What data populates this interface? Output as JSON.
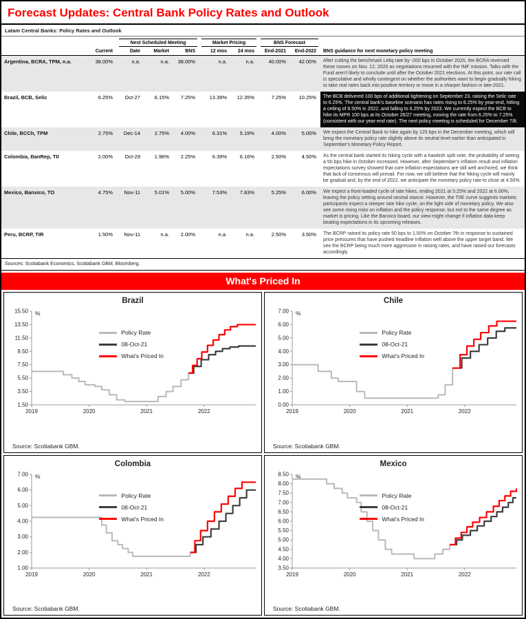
{
  "page": {
    "title": "Forecast Updates: Central Bank Policy Rates and Outlook",
    "accent_color": "#ff0000"
  },
  "table": {
    "title": "Latam Central Banks: Policy Rates and Outlook",
    "group_headers": {
      "meeting": "Next Scheduled Meeting",
      "pricing": "Market Pricing",
      "forecast": "BNS Forecast"
    },
    "columns": {
      "current": "Current",
      "date": "Date",
      "market": "Market",
      "bns": "BNS",
      "m12": "12 mos",
      "m24": "24 mos",
      "end2021": "End-2021",
      "end2022": "End-2022",
      "guidance": "BNS guidance for next monetary policy meeting"
    },
    "rows": [
      {
        "name": "Argentina, BCRA, TPM, n.a.",
        "current": "38.00%",
        "date": "n.a.",
        "market": "n.a.",
        "bns": "38.00%",
        "m12": "n.a.",
        "m24": "n.a.",
        "end2021": "40.00%",
        "end2022": "42.00%",
        "highlight": false,
        "guidance": "After cutting the benchmark Leliq rate by -200 bps in October 2020, the BCRA reversed these moves on Nov. 12, 2020 as negotiations resumed with the IMF mission. Talks with the Fund aren't likely to conclude until after the October 2021 elections. At this point, our rate call is speculative and wholly contingent on whether the authorities want to begin gradually hiking to take real rates back into positive territory or move in a sharper fashion in late-2021."
      },
      {
        "name": "Brazil, BCB, Selic",
        "current": "6.25%",
        "date": "Oct-27",
        "market": "6.15%",
        "bns": "7.25%",
        "m12": "13.39%",
        "m24": "12.35%",
        "end2021": "7.25%",
        "end2022": "10.25%",
        "highlight": true,
        "guidance": "The BCB delivered 100 bps of additional tightening on September 23, raising the Selic rate to 6.25%. The central bank's baseline scenario has rates rising to 8.25% by year-end, hitting a ceiling of 8.50% in 2022, and falling to 6.25% by 2023. We currently expect the BCB to hike its MPR 100 bps at its October 26/27 meeting, moving the rate from 6.25% to 7.25% (consistent with our year-end rate). The next policy meeting is scheduled for December 7/8."
      },
      {
        "name": "Chile, BCCh, TPM",
        "current": "2.75%",
        "date": "Dec-14",
        "market": "2.75%",
        "bns": "4.00%",
        "m12": "6.31%",
        "m24": "5.19%",
        "end2021": "4.00%",
        "end2022": "5.00%",
        "highlight": false,
        "guidance": "We expect the Central Bank to hike again by 125 bps in the December meeting, which will bring the monetary policy rate slightly above its neutral level earlier than anticipated in September's Monetary Policy Report."
      },
      {
        "name": "Colombia, BanRep, TII",
        "current": "2.00%",
        "date": "Oct-29",
        "market": "1.96%",
        "bns": "2.25%",
        "m12": "6.39%",
        "m24": "6.16%",
        "end2021": "2.50%",
        "end2022": "4.50%",
        "highlight": false,
        "guidance": "As the central bank started its hiking cycle with a hawkish split vote, the probability of seeing a 50 bps hike in October increased. However, after September's inflation result and inflation expectations survey showed that core inflation expectations are still well anchored, we think that lack of consensus will prevail. For now, we still believe that the hiking cycle will mainly be gradual and, by the end of 2022, we anticipate the monetary policy rate to close at 4.50%."
      },
      {
        "name": "Mexico, Banxico, TO",
        "current": "4.75%",
        "date": "Nov-11",
        "market": "5.01%",
        "bns": "5.00%",
        "m12": "7.53%",
        "m24": "7.83%",
        "end2021": "5.25%",
        "end2022": "6.00%",
        "highlight": false,
        "guidance": "We expect a front-loaded cycle of rate hikes, ending 2021 at 5.25% and 2022 at 6.00%, leaving the policy setting around neutral stance. However, the TIIE curve suggests markets participants expect a steeper rate hike cycle, on the tight side of monetary policy. We also see some rising risks on inflation and the policy response, but not to the same degree as market is pricing. Like the Banxico board, our view might change if inflation data keep beating expectations in its upcoming releases."
      },
      {
        "name": "Peru, BCRP, TIR",
        "current": "1.50%",
        "date": "Nov-11",
        "market": "n.a.",
        "bns": "2.00%",
        "m12": "n.a.",
        "m24": "n.a.",
        "end2021": "2.50%",
        "end2022": "3.50%",
        "highlight": false,
        "guidance": "The BCRP raised its policy rate 50 bps to 1.50% on October 7th in response to sustained price pressures that have pushed headline inflation well above the upper target band. We see the BCRP being much more aggressive in raising rates, and have raised our forecasts accordingly."
      }
    ],
    "sources": "Sources: Scotiabank Economics, Scotiabank GBM, Bloomberg."
  },
  "banner": {
    "label": "What's Priced In"
  },
  "chart_data": [
    {
      "type": "line",
      "title": "Brazil",
      "ylabel": "%",
      "ylim": [
        1.5,
        15.5
      ],
      "yticks": [
        1.5,
        3.5,
        5.5,
        7.5,
        9.5,
        11.5,
        13.5,
        15.5
      ],
      "xlim": [
        2019,
        2022.9
      ],
      "xticks": [
        2019,
        2020,
        2021,
        2022
      ],
      "source": "Source: Scotiabank GBM.",
      "series": [
        {
          "name": "Policy Rate",
          "color": "#b9b9b9",
          "width": 2,
          "points": [
            [
              2019.0,
              6.5
            ],
            [
              2019.55,
              6.0
            ],
            [
              2019.7,
              5.5
            ],
            [
              2019.82,
              5.0
            ],
            [
              2019.93,
              4.5
            ],
            [
              2020.1,
              4.25
            ],
            [
              2020.22,
              3.75
            ],
            [
              2020.35,
              3.0
            ],
            [
              2020.48,
              2.25
            ],
            [
              2020.62,
              2.0
            ],
            [
              2021.2,
              2.75
            ],
            [
              2021.34,
              3.5
            ],
            [
              2021.46,
              4.25
            ],
            [
              2021.6,
              5.25
            ],
            [
              2021.73,
              6.25
            ]
          ]
        },
        {
          "name": "08-Oct-21",
          "color": "#3d3d3d",
          "width": 2.2,
          "points": [
            [
              2021.73,
              6.25
            ],
            [
              2021.82,
              7.25
            ],
            [
              2021.95,
              8.25
            ],
            [
              2022.08,
              9.0
            ],
            [
              2022.2,
              9.5
            ],
            [
              2022.32,
              9.9
            ],
            [
              2022.45,
              10.15
            ],
            [
              2022.6,
              10.3
            ],
            [
              2022.9,
              10.3
            ]
          ]
        },
        {
          "name": "What's Priced In",
          "color": "#ff0000",
          "width": 2.2,
          "points": [
            [
              2021.73,
              6.25
            ],
            [
              2021.8,
              7.4
            ],
            [
              2021.88,
              8.4
            ],
            [
              2021.96,
              9.4
            ],
            [
              2022.06,
              10.4
            ],
            [
              2022.16,
              11.2
            ],
            [
              2022.26,
              12.0
            ],
            [
              2022.36,
              12.7
            ],
            [
              2022.46,
              13.2
            ],
            [
              2022.58,
              13.5
            ],
            [
              2022.9,
              13.5
            ]
          ]
        }
      ]
    },
    {
      "type": "line",
      "title": "Chile",
      "ylabel": "%",
      "ylim": [
        0,
        7
      ],
      "yticks": [
        0,
        1,
        2,
        3,
        4,
        5,
        6,
        7
      ],
      "xlim": [
        2019,
        2022.9
      ],
      "xticks": [
        2019,
        2020,
        2021,
        2022
      ],
      "source": "Source: Scotiabank GBM.",
      "series": [
        {
          "name": "Policy Rate",
          "color": "#b9b9b9",
          "width": 2,
          "points": [
            [
              2019.0,
              3.0
            ],
            [
              2019.45,
              2.5
            ],
            [
              2019.68,
              2.0
            ],
            [
              2019.8,
              1.75
            ],
            [
              2020.12,
              1.0
            ],
            [
              2020.26,
              0.5
            ],
            [
              2021.54,
              0.75
            ],
            [
              2021.66,
              1.5
            ],
            [
              2021.79,
              2.75
            ]
          ]
        },
        {
          "name": "08-Oct-21",
          "color": "#3d3d3d",
          "width": 2.2,
          "points": [
            [
              2021.79,
              2.75
            ],
            [
              2021.95,
              3.5
            ],
            [
              2022.1,
              4.0
            ],
            [
              2022.25,
              4.5
            ],
            [
              2022.4,
              5.0
            ],
            [
              2022.55,
              5.5
            ],
            [
              2022.7,
              5.75
            ],
            [
              2022.9,
              5.75
            ]
          ]
        },
        {
          "name": "What's Priced In",
          "color": "#ff0000",
          "width": 2.2,
          "points": [
            [
              2021.79,
              2.75
            ],
            [
              2021.92,
              3.75
            ],
            [
              2022.04,
              4.4
            ],
            [
              2022.16,
              4.9
            ],
            [
              2022.28,
              5.4
            ],
            [
              2022.42,
              5.9
            ],
            [
              2022.56,
              6.25
            ],
            [
              2022.9,
              6.25
            ]
          ]
        }
      ]
    },
    {
      "type": "line",
      "title": "Colombia",
      "ylabel": "%",
      "ylim": [
        1,
        7
      ],
      "yticks": [
        1,
        2,
        3,
        4,
        5,
        6,
        7
      ],
      "xlim": [
        2019,
        2022.9
      ],
      "xticks": [
        2019,
        2020,
        2021,
        2022
      ],
      "source": "Source: Scotiabank GBM.",
      "series": [
        {
          "name": "Policy Rate",
          "color": "#b9b9b9",
          "width": 2,
          "points": [
            [
              2019.0,
              4.25
            ],
            [
              2020.22,
              3.75
            ],
            [
              2020.3,
              3.25
            ],
            [
              2020.4,
              2.75
            ],
            [
              2020.5,
              2.5
            ],
            [
              2020.58,
              2.25
            ],
            [
              2020.68,
              2.0
            ],
            [
              2020.76,
              1.75
            ],
            [
              2021.76,
              2.0
            ]
          ]
        },
        {
          "name": "08-Oct-21",
          "color": "#3d3d3d",
          "width": 2.2,
          "points": [
            [
              2021.76,
              2.0
            ],
            [
              2021.86,
              2.5
            ],
            [
              2021.98,
              3.0
            ],
            [
              2022.12,
              3.5
            ],
            [
              2022.26,
              4.0
            ],
            [
              2022.38,
              4.5
            ],
            [
              2022.5,
              5.0
            ],
            [
              2022.62,
              5.5
            ],
            [
              2022.74,
              6.0
            ],
            [
              2022.9,
              6.0
            ]
          ]
        },
        {
          "name": "What's Priced In",
          "color": "#ff0000",
          "width": 2.2,
          "points": [
            [
              2021.76,
              2.0
            ],
            [
              2021.84,
              2.75
            ],
            [
              2021.94,
              3.4
            ],
            [
              2022.06,
              4.0
            ],
            [
              2022.18,
              4.6
            ],
            [
              2022.3,
              5.1
            ],
            [
              2022.42,
              5.6
            ],
            [
              2022.54,
              6.1
            ],
            [
              2022.66,
              6.5
            ],
            [
              2022.9,
              6.5
            ]
          ]
        }
      ]
    },
    {
      "type": "line",
      "title": "Mexico",
      "ylabel": "%",
      "ylim": [
        3.5,
        8.5
      ],
      "yticks": [
        3.5,
        4.0,
        4.5,
        5.0,
        5.5,
        6.0,
        6.5,
        7.0,
        7.5,
        8.0,
        8.5
      ],
      "xlim": [
        2019,
        2022.9
      ],
      "xticks": [
        2019,
        2020,
        2021,
        2022
      ],
      "source": "Source: Scotiabank GBM.",
      "series": [
        {
          "name": "Policy Rate",
          "color": "#b9b9b9",
          "width": 2,
          "points": [
            [
              2019.0,
              8.25
            ],
            [
              2019.6,
              8.0
            ],
            [
              2019.73,
              7.75
            ],
            [
              2019.87,
              7.5
            ],
            [
              2019.96,
              7.25
            ],
            [
              2020.12,
              7.0
            ],
            [
              2020.2,
              6.5
            ],
            [
              2020.3,
              6.0
            ],
            [
              2020.4,
              5.5
            ],
            [
              2020.5,
              5.0
            ],
            [
              2020.62,
              4.5
            ],
            [
              2020.73,
              4.25
            ],
            [
              2021.12,
              4.0
            ],
            [
              2021.48,
              4.25
            ],
            [
              2021.62,
              4.5
            ],
            [
              2021.74,
              4.75
            ]
          ]
        },
        {
          "name": "08-Oct-21",
          "color": "#3d3d3d",
          "width": 2.2,
          "points": [
            [
              2021.74,
              4.75
            ],
            [
              2021.86,
              5.0
            ],
            [
              2021.96,
              5.25
            ],
            [
              2022.1,
              5.5
            ],
            [
              2022.22,
              5.75
            ],
            [
              2022.34,
              6.0
            ],
            [
              2022.46,
              6.25
            ],
            [
              2022.56,
              6.5
            ],
            [
              2022.66,
              6.75
            ],
            [
              2022.76,
              7.0
            ],
            [
              2022.84,
              7.25
            ],
            [
              2022.9,
              7.25
            ]
          ]
        },
        {
          "name": "What's Priced In",
          "color": "#ff0000",
          "width": 2.2,
          "points": [
            [
              2021.74,
              4.75
            ],
            [
              2021.84,
              5.1
            ],
            [
              2021.94,
              5.4
            ],
            [
              2022.04,
              5.7
            ],
            [
              2022.14,
              5.95
            ],
            [
              2022.26,
              6.2
            ],
            [
              2022.38,
              6.5
            ],
            [
              2022.5,
              6.8
            ],
            [
              2022.6,
              7.1
            ],
            [
              2022.7,
              7.35
            ],
            [
              2022.8,
              7.6
            ],
            [
              2022.9,
              7.75
            ]
          ]
        }
      ]
    }
  ]
}
